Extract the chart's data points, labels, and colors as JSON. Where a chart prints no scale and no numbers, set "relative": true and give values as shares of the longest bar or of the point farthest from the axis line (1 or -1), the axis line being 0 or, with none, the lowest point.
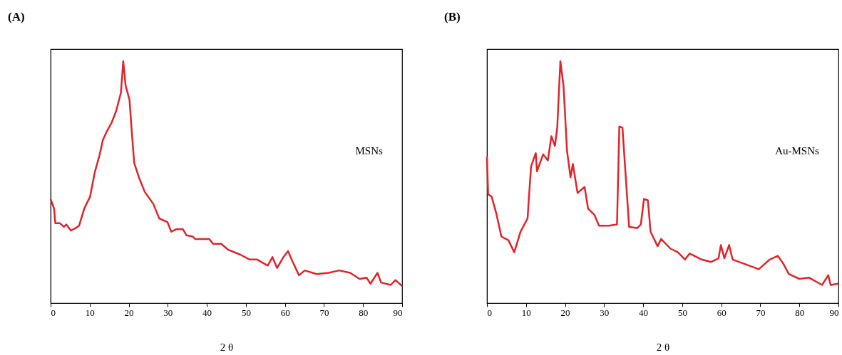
{
  "chart_data": [
    {
      "type": "line",
      "title": "(A)",
      "xlabel": "2 θ",
      "relative": true,
      "xlim": [
        0,
        90
      ],
      "xticks": [
        0,
        10,
        20,
        30,
        40,
        50,
        60,
        70,
        80,
        90
      ],
      "grid": false,
      "series": [
        {
          "name": "MSNs",
          "color": "#e0242a",
          "x": [
            0,
            0.9,
            1.2,
            2.4,
            3.4,
            4.0,
            5.2,
            6.4,
            7.3,
            8.6,
            10.1,
            11.3,
            12.5,
            13.4,
            14.4,
            15.6,
            16.8,
            18.0,
            18.6,
            19.2,
            20.2,
            20.8,
            21.4,
            22.6,
            24.1,
            26.3,
            27.8,
            29.9,
            30.9,
            32.1,
            33.9,
            34.8,
            36.4,
            37.0,
            40.6,
            41.6,
            43.7,
            45.5,
            48.6,
            51.0,
            52.9,
            55.6,
            56.8,
            58.0,
            59.6,
            60.8,
            62.0,
            63.6,
            65.1,
            68.1,
            71.2,
            73.9,
            76.7,
            79.1,
            80.9,
            81.9,
            83.7,
            84.6,
            87.1,
            88.3,
            90
          ],
          "values": [
            0.43,
            0.39,
            0.33,
            0.33,
            0.315,
            0.325,
            0.3,
            0.31,
            0.32,
            0.39,
            0.44,
            0.54,
            0.61,
            0.675,
            0.71,
            0.745,
            0.795,
            0.87,
            1.0,
            0.9,
            0.84,
            0.705,
            0.58,
            0.52,
            0.46,
            0.41,
            0.35,
            0.335,
            0.295,
            0.305,
            0.305,
            0.28,
            0.275,
            0.265,
            0.265,
            0.245,
            0.245,
            0.22,
            0.2,
            0.18,
            0.18,
            0.155,
            0.19,
            0.145,
            0.19,
            0.215,
            0.17,
            0.115,
            0.135,
            0.12,
            0.125,
            0.135,
            0.125,
            0.1,
            0.105,
            0.08,
            0.125,
            0.085,
            0.075,
            0.095,
            0.07
          ]
        }
      ]
    },
    {
      "type": "line",
      "title": "(B)",
      "xlabel": "2 θ",
      "relative": true,
      "xlim": [
        0,
        90
      ],
      "xticks": [
        0,
        10,
        20,
        30,
        40,
        50,
        60,
        70,
        80,
        90
      ],
      "grid": false,
      "series": [
        {
          "name": "Au-MSNs",
          "color": "#e0242a",
          "x": [
            0,
            0.3,
            1.2,
            2.4,
            3.7,
            5.5,
            7.0,
            8.6,
            10.4,
            10.7,
            11.3,
            12.5,
            12.8,
            14.4,
            15.6,
            16.5,
            17.4,
            18.0,
            18.8,
            19.6,
            20.5,
            21.4,
            22.0,
            23.2,
            25.0,
            25.9,
            27.5,
            28.7,
            31.2,
            33.3,
            33.9,
            34.7,
            36.4,
            38.5,
            39.4,
            40.2,
            41.2,
            41.9,
            43.7,
            44.6,
            47.0,
            48.9,
            50.7,
            51.9,
            55.0,
            57.4,
            59.3,
            59.9,
            60.8,
            62.0,
            62.9,
            65.4,
            69.6,
            72.4,
            74.5,
            75.8,
            77.3,
            80.0,
            82.5,
            85.8,
            87.4,
            88.0,
            90
          ],
          "values": [
            0.605,
            0.45,
            0.44,
            0.37,
            0.275,
            0.26,
            0.21,
            0.295,
            0.35,
            0.425,
            0.565,
            0.62,
            0.545,
            0.615,
            0.59,
            0.69,
            0.65,
            0.725,
            1.0,
            0.9,
            0.63,
            0.52,
            0.575,
            0.455,
            0.48,
            0.39,
            0.365,
            0.32,
            0.32,
            0.325,
            0.73,
            0.725,
            0.315,
            0.31,
            0.325,
            0.43,
            0.425,
            0.295,
            0.235,
            0.265,
            0.225,
            0.21,
            0.18,
            0.205,
            0.18,
            0.17,
            0.185,
            0.24,
            0.185,
            0.24,
            0.18,
            0.165,
            0.14,
            0.18,
            0.195,
            0.165,
            0.12,
            0.1,
            0.105,
            0.075,
            0.115,
            0.075,
            0.08
          ]
        }
      ]
    }
  ]
}
